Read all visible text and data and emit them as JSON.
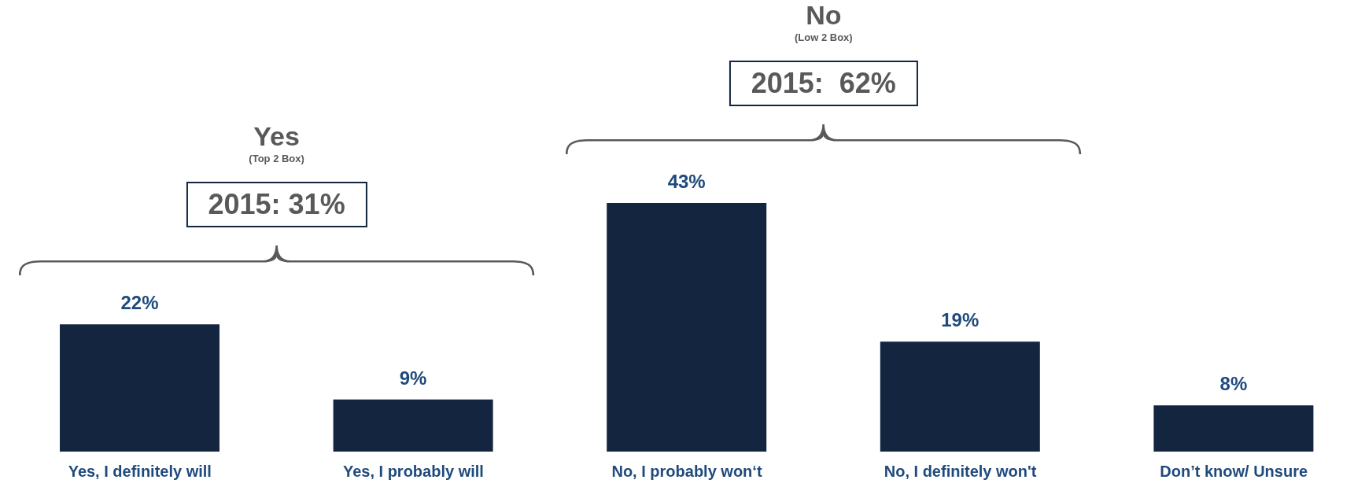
{
  "chart_data": {
    "type": "bar",
    "categories": [
      "Yes, I definitely will",
      "Yes, I probably will",
      "No, I probably won‘t",
      "No, I definitely won't",
      "Don’t know/ Unsure"
    ],
    "values": [
      22,
      9,
      43,
      19,
      8
    ],
    "value_labels": [
      "22%",
      "9%",
      "43%",
      "19%",
      "8%"
    ],
    "color": "#13253f",
    "annotations": [
      "Yes",
      "(Top 2 Box)",
      "2015: 31%",
      "No",
      "(Low 2 Box)",
      "2015:  62%"
    ]
  }
}
